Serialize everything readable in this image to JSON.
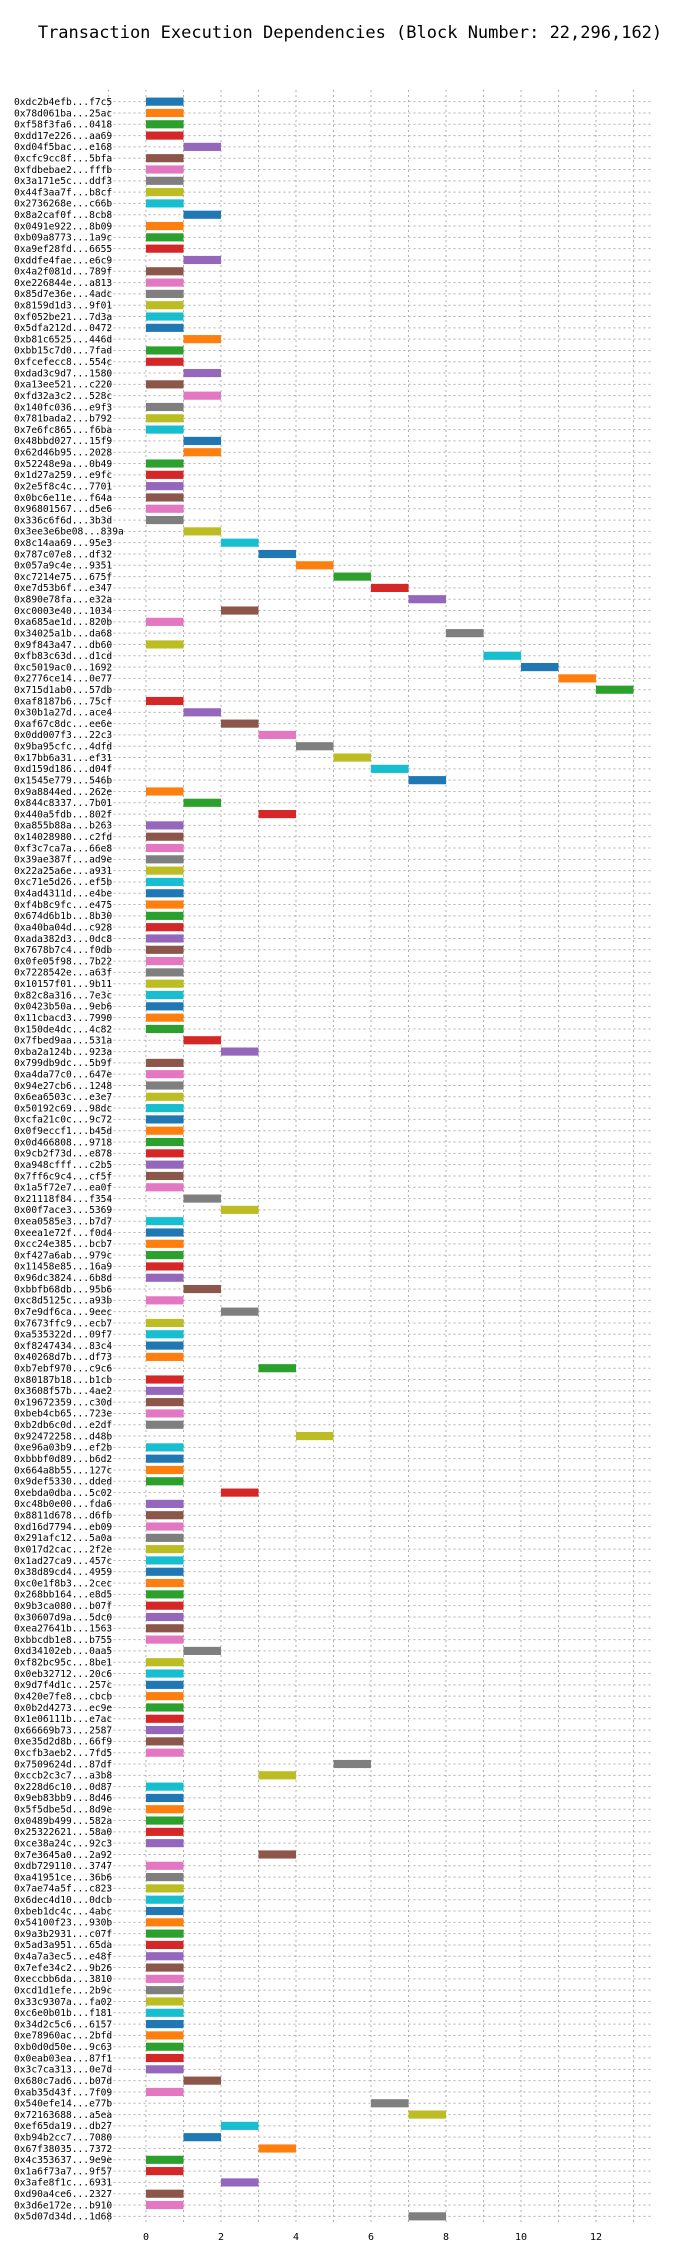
{
  "chart_data": {
    "type": "bar",
    "orientation": "horizontal-gantt",
    "title": "Transaction Execution Dependencies (Block Number: 22,296,162)",
    "xlabel": "",
    "ylabel": "",
    "xlim": [
      -1,
      13.5
    ],
    "xticks": [
      0,
      2,
      4,
      6,
      8,
      10,
      12
    ],
    "grid": "dotted",
    "bar_width": 1,
    "palette": [
      "#1f77b4",
      "#ff7f0e",
      "#2ca02c",
      "#d62728",
      "#9467bd",
      "#8c564b",
      "#e377c2",
      "#7f7f7f",
      "#bcbd22",
      "#17becf"
    ],
    "transactions": [
      {
        "label": "0xdc2b4efb...f7c5",
        "start": 0
      },
      {
        "label": "0x78d061ba...25ac",
        "start": 0
      },
      {
        "label": "0xf58f3fa6...0418",
        "start": 0
      },
      {
        "label": "0xdd17e226...aa69",
        "start": 0
      },
      {
        "label": "0xd04f5bac...e168",
        "start": 1
      },
      {
        "label": "0xcfc9cc8f...5bfa",
        "start": 0
      },
      {
        "label": "0xfdbebae2...fffb",
        "start": 0
      },
      {
        "label": "0x3a171e5c...ddf3",
        "start": 0
      },
      {
        "label": "0x44f3aa7f...b8cf",
        "start": 0
      },
      {
        "label": "0x2736268e...c66b",
        "start": 0
      },
      {
        "label": "0x8a2caf0f...8cb8",
        "start": 1
      },
      {
        "label": "0x0491e922...8b09",
        "start": 0
      },
      {
        "label": "0xb09a8773...1a9c",
        "start": 0
      },
      {
        "label": "0xa9ef28fd...6655",
        "start": 0
      },
      {
        "label": "0xddfe4fae...e6c9",
        "start": 1
      },
      {
        "label": "0x4a2f081d...789f",
        "start": 0
      },
      {
        "label": "0xe226844e...a813",
        "start": 0
      },
      {
        "label": "0x85d7e36e...4adc",
        "start": 0
      },
      {
        "label": "0x8159d1d3...9f01",
        "start": 0
      },
      {
        "label": "0xf052be21...7d3a",
        "start": 0
      },
      {
        "label": "0x5dfa212d...0472",
        "start": 0
      },
      {
        "label": "0xb81c6525...446d",
        "start": 1
      },
      {
        "label": "0xbb15c7d0...7fad",
        "start": 0
      },
      {
        "label": "0xfcefecc8...554c",
        "start": 0
      },
      {
        "label": "0xdad3c9d7...1580",
        "start": 1
      },
      {
        "label": "0xa13ee521...c220",
        "start": 0
      },
      {
        "label": "0xfd32a3c2...528c",
        "start": 1
      },
      {
        "label": "0x140fc036...e9f3",
        "start": 0
      },
      {
        "label": "0x781bada2...b792",
        "start": 0
      },
      {
        "label": "0x7e6fc865...f6ba",
        "start": 0
      },
      {
        "label": "0x48bbd027...15f9",
        "start": 1
      },
      {
        "label": "0x62d46b95...2028",
        "start": 1
      },
      {
        "label": "0x52248e9a...0b49",
        "start": 0
      },
      {
        "label": "0x1d27a259...e9fc",
        "start": 0
      },
      {
        "label": "0x2e5f8c4c...7701",
        "start": 0
      },
      {
        "label": "0x0bc6e11e...f64a",
        "start": 0
      },
      {
        "label": "0x96801567...d5e6",
        "start": 0
      },
      {
        "label": "0x336c6f6d...3b3d",
        "start": 0
      },
      {
        "label": "0x3ee3e6be08...839a",
        "start": 1
      },
      {
        "label": "0x8c14aa69...95e3",
        "start": 2
      },
      {
        "label": "0x787c07e8...df32",
        "start": 3
      },
      {
        "label": "0x057a9c4e...9351",
        "start": 4
      },
      {
        "label": "0xc7214e75...675f",
        "start": 5
      },
      {
        "label": "0xe7d53b6f...e347",
        "start": 6
      },
      {
        "label": "0x890e78fa...e32a",
        "start": 7
      },
      {
        "label": "0xc0003e40...1034",
        "start": 2
      },
      {
        "label": "0xa685ae1d...820b",
        "start": 0
      },
      {
        "label": "0x34025a1b...da68",
        "start": 8
      },
      {
        "label": "0x9f843a47...db60",
        "start": 0
      },
      {
        "label": "0xfb83c63d...d1cd",
        "start": 9
      },
      {
        "label": "0xc5019ac0...1692",
        "start": 10
      },
      {
        "label": "0x2776ce14...0e77",
        "start": 11
      },
      {
        "label": "0x715d1ab0...57db",
        "start": 12
      },
      {
        "label": "0xaf8187b6...75cf",
        "start": 0
      },
      {
        "label": "0x30b1a27d...ace4",
        "start": 1
      },
      {
        "label": "0xaf67c8dc...ee6e",
        "start": 2
      },
      {
        "label": "0x0dd007f3...22c3",
        "start": 3
      },
      {
        "label": "0x9ba95cfc...4dfd",
        "start": 4
      },
      {
        "label": "0x17bb6a31...ef31",
        "start": 5
      },
      {
        "label": "0xd159d186...d04f",
        "start": 6
      },
      {
        "label": "0x1545e779...546b",
        "start": 7
      },
      {
        "label": "0x9a8844ed...262e",
        "start": 0
      },
      {
        "label": "0x844c8337...7b01",
        "start": 1
      },
      {
        "label": "0x440a5fdb...802f",
        "start": 3
      },
      {
        "label": "0xa855b88a...b263",
        "start": 0
      },
      {
        "label": "0x14028980...c2fd",
        "start": 0
      },
      {
        "label": "0xf3c7ca7a...66e8",
        "start": 0
      },
      {
        "label": "0x39ae387f...ad9e",
        "start": 0
      },
      {
        "label": "0x22a25a6e...a931",
        "start": 0
      },
      {
        "label": "0xc71e5d26...ef5b",
        "start": 0
      },
      {
        "label": "0x4ad4311d...e4be",
        "start": 0
      },
      {
        "label": "0xf4b8c9fc...e475",
        "start": 0
      },
      {
        "label": "0x674d6b1b...8b30",
        "start": 0
      },
      {
        "label": "0xa40ba04d...c928",
        "start": 0
      },
      {
        "label": "0xada382d3...0dc8",
        "start": 0
      },
      {
        "label": "0x7678b7c4...f0db",
        "start": 0
      },
      {
        "label": "0x0fe05f98...7b22",
        "start": 0
      },
      {
        "label": "0x7228542e...a63f",
        "start": 0
      },
      {
        "label": "0x10157f01...9b11",
        "start": 0
      },
      {
        "label": "0x82c8a316...7e3c",
        "start": 0
      },
      {
        "label": "0x0423b50a...9eb6",
        "start": 0
      },
      {
        "label": "0x11cbacd3...7990",
        "start": 0
      },
      {
        "label": "0x150de4dc...4c82",
        "start": 0
      },
      {
        "label": "0x7fbed9aa...531a",
        "start": 1
      },
      {
        "label": "0xba2a124b...923a",
        "start": 2
      },
      {
        "label": "0x799db9dc...5b9f",
        "start": 0
      },
      {
        "label": "0xa4da77c0...647e",
        "start": 0
      },
      {
        "label": "0x94e27cb6...1248",
        "start": 0
      },
      {
        "label": "0x6ea6503c...e3e7",
        "start": 0
      },
      {
        "label": "0x50192c69...98dc",
        "start": 0
      },
      {
        "label": "0xcfa21c0c...9c72",
        "start": 0
      },
      {
        "label": "0x0f9eccf1...b45d",
        "start": 0
      },
      {
        "label": "0x0d466808...9718",
        "start": 0
      },
      {
        "label": "0x9cb2f73d...e878",
        "start": 0
      },
      {
        "label": "0xa948cfff...c2b5",
        "start": 0
      },
      {
        "label": "0x7ff6c9c4...cf5f",
        "start": 0
      },
      {
        "label": "0x1a5f72e7...ea0f",
        "start": 0
      },
      {
        "label": "0x21118f84...f354",
        "start": 1
      },
      {
        "label": "0x00f7ace3...5369",
        "start": 2
      },
      {
        "label": "0xea0585e3...b7d7",
        "start": 0
      },
      {
        "label": "0xeea1e72f...f0d4",
        "start": 0
      },
      {
        "label": "0xcc24e385...bcb7",
        "start": 0
      },
      {
        "label": "0xf427a6ab...979c",
        "start": 0
      },
      {
        "label": "0x11458e85...16a9",
        "start": 0
      },
      {
        "label": "0x96dc3824...6b8d",
        "start": 0
      },
      {
        "label": "0xbbfb68db...95b6",
        "start": 1
      },
      {
        "label": "0xc8d5125c...a93b",
        "start": 0
      },
      {
        "label": "0x7e9df6ca...9eec",
        "start": 2
      },
      {
        "label": "0x7673ffc9...ecb7",
        "start": 0
      },
      {
        "label": "0xa535322d...09f7",
        "start": 0
      },
      {
        "label": "0xf8247434...83c4",
        "start": 0
      },
      {
        "label": "0x40268d7b...df73",
        "start": 0
      },
      {
        "label": "0xb7ebf970...c9c6",
        "start": 3
      },
      {
        "label": "0x80187b18...b1cb",
        "start": 0
      },
      {
        "label": "0x3608f57b...4ae2",
        "start": 0
      },
      {
        "label": "0x19672359...c30d",
        "start": 0
      },
      {
        "label": "0xbeb4cb65...723e",
        "start": 0
      },
      {
        "label": "0xb2db6c0d...e2df",
        "start": 0
      },
      {
        "label": "0x92472258...d48b",
        "start": 4
      },
      {
        "label": "0xe96a03b9...ef2b",
        "start": 0
      },
      {
        "label": "0xbbbf0d89...b6d2",
        "start": 0
      },
      {
        "label": "0x664a8b55...127c",
        "start": 0
      },
      {
        "label": "0x9def5330...dded",
        "start": 0
      },
      {
        "label": "0xebda0dba...5c02",
        "start": 2
      },
      {
        "label": "0xc48b0e00...fda6",
        "start": 0
      },
      {
        "label": "0x8811d678...d6fb",
        "start": 0
      },
      {
        "label": "0xd16d7794...eb09",
        "start": 0
      },
      {
        "label": "0x291afc12...5a0a",
        "start": 0
      },
      {
        "label": "0x017d2cac...2f2e",
        "start": 0
      },
      {
        "label": "0x1ad27ca9...457c",
        "start": 0
      },
      {
        "label": "0x38d89cd4...4959",
        "start": 0
      },
      {
        "label": "0xc0e1f8b3...2cec",
        "start": 0
      },
      {
        "label": "0x268bb164...e8d5",
        "start": 0
      },
      {
        "label": "0x9b3ca080...b07f",
        "start": 0
      },
      {
        "label": "0x30607d9a...5dc0",
        "start": 0
      },
      {
        "label": "0xea27641b...1563",
        "start": 0
      },
      {
        "label": "0xbbcdb1e8...b755",
        "start": 0
      },
      {
        "label": "0xd34102eb...0aa5",
        "start": 1
      },
      {
        "label": "0xf82bc95c...8be1",
        "start": 0
      },
      {
        "label": "0x0eb32712...20c6",
        "start": 0
      },
      {
        "label": "0x9d7f4d1c...257c",
        "start": 0
      },
      {
        "label": "0x420e7fe8...cbcb",
        "start": 0
      },
      {
        "label": "0x0b2d4273...ec9e",
        "start": 0
      },
      {
        "label": "0x1e06111b...e7ac",
        "start": 0
      },
      {
        "label": "0x66669b73...2587",
        "start": 0
      },
      {
        "label": "0xe35d2d8b...66f9",
        "start": 0
      },
      {
        "label": "0xcfb3aeb2...7fd5",
        "start": 0
      },
      {
        "label": "0x7509624d...87df",
        "start": 5
      },
      {
        "label": "0xccb2c3c7...a3b8",
        "start": 3
      },
      {
        "label": "0x228d6c10...0d87",
        "start": 0
      },
      {
        "label": "0x9eb83bb9...8d46",
        "start": 0
      },
      {
        "label": "0x5f5dbe5d...8d9e",
        "start": 0
      },
      {
        "label": "0x0489b499...582a",
        "start": 0
      },
      {
        "label": "0x25322621...58a0",
        "start": 0
      },
      {
        "label": "0xce38a24c...92c3",
        "start": 0
      },
      {
        "label": "0x7e3645a0...2a92",
        "start": 3
      },
      {
        "label": "0xdb729110...3747",
        "start": 0
      },
      {
        "label": "0xa41951ce...36b6",
        "start": 0
      },
      {
        "label": "0x7ae74a5f...c823",
        "start": 0
      },
      {
        "label": "0x6dec4d10...0dcb",
        "start": 0
      },
      {
        "label": "0xbeb1dc4c...4abc",
        "start": 0
      },
      {
        "label": "0x54100f23...930b",
        "start": 0
      },
      {
        "label": "0x9a3b2931...c07f",
        "start": 0
      },
      {
        "label": "0x5ad3a951...65da",
        "start": 0
      },
      {
        "label": "0x4a7a3ec5...e48f",
        "start": 0
      },
      {
        "label": "0x7efe34c2...9b26",
        "start": 0
      },
      {
        "label": "0xeccbb6da...3810",
        "start": 0
      },
      {
        "label": "0xcd1d1efe...2b9c",
        "start": 0
      },
      {
        "label": "0x33c9307a...fa02",
        "start": 0
      },
      {
        "label": "0xc6e0b01b...f181",
        "start": 0
      },
      {
        "label": "0x34d2c5c6...6157",
        "start": 0
      },
      {
        "label": "0xe78960ac...2bfd",
        "start": 0
      },
      {
        "label": "0xb0d0d50e...9c63",
        "start": 0
      },
      {
        "label": "0x0eab03ea...87f1",
        "start": 0
      },
      {
        "label": "0x3c7ca313...0e7d",
        "start": 0
      },
      {
        "label": "0x680c7ad6...b07d",
        "start": 1
      },
      {
        "label": "0xab35d43f...7f09",
        "start": 0
      },
      {
        "label": "0x540efe14...e77b",
        "start": 6
      },
      {
        "label": "0x72163688...a5ea",
        "start": 7
      },
      {
        "label": "0xef65da19...db27",
        "start": 2
      },
      {
        "label": "0xb94b2cc7...7080",
        "start": 1
      },
      {
        "label": "0x67f38035...7372",
        "start": 3
      },
      {
        "label": "0x4c353637...9e9e",
        "start": 0
      },
      {
        "label": "0x1a6f73a7...9f57",
        "start": 0
      },
      {
        "label": "0x3afe8f1c...6931",
        "start": 2
      },
      {
        "label": "0xd90a4ce6...2327",
        "start": 0
      },
      {
        "label": "0x3d6e172e...b910",
        "start": 0
      },
      {
        "label": "0x5d07d34d...1d68",
        "start": 7
      }
    ]
  }
}
